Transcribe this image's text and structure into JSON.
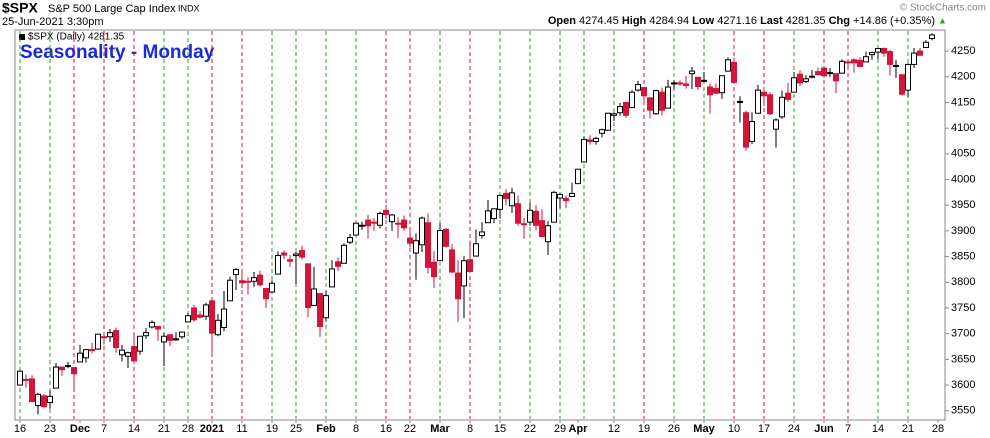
{
  "chart_data": {
    "type": "candlestick",
    "symbol": "$SPX",
    "name": "S&P 500 Large Cap Index",
    "exchange": "INDX",
    "datetime": "25-Jun-2021 3:30pm",
    "quote": {
      "open_label": "Open",
      "open": 4274.45,
      "high_label": "High",
      "high": 4284.94,
      "low_label": "Low",
      "low": 4271.16,
      "last_label": "Last",
      "last": 4281.35,
      "chg_label": "Chg",
      "chg": "+14.86",
      "chg_pct": "(+0.35%)",
      "arrow": "▲"
    },
    "credit": "© StockCharts.com",
    "legend": "$SPX (Daily) 4281.35",
    "title": "Seasonality - Monday",
    "up_color": "#ffffff",
    "down_color": "#d6133a",
    "marker_up_color": "#2e9e2e",
    "marker_down_color": "#d6133a",
    "ylim": [
      3532,
      4291
    ],
    "yticks": [
      3550,
      3600,
      3650,
      3700,
      3750,
      3800,
      3850,
      3900,
      3950,
      4000,
      4050,
      4100,
      4150,
      4200,
      4250
    ],
    "categories": [
      "16",
      null,
      null,
      null,
      null,
      "23",
      null,
      null,
      null,
      null,
      "Dec",
      null,
      null,
      null,
      "7",
      null,
      null,
      null,
      null,
      "14",
      null,
      null,
      null,
      null,
      "21",
      null,
      null,
      null,
      "28",
      null,
      null,
      null,
      "2021",
      null,
      null,
      null,
      null,
      "11",
      null,
      null,
      null,
      null,
      "19",
      null,
      null,
      null,
      "25",
      null,
      null,
      null,
      null,
      "Feb",
      null,
      null,
      null,
      null,
      "8",
      null,
      null,
      null,
      null,
      "16",
      null,
      null,
      null,
      "22",
      null,
      null,
      null,
      null,
      "Mar",
      null,
      null,
      null,
      null,
      "8",
      null,
      null,
      null,
      null,
      "15",
      null,
      null,
      null,
      null,
      "22",
      null,
      null,
      null,
      null,
      "29",
      null,
      null,
      "Apr",
      null,
      null,
      null,
      null,
      null,
      "12",
      null,
      null,
      null,
      null,
      "19",
      null,
      null,
      null,
      null,
      "26",
      null,
      null,
      null,
      null,
      "May",
      null,
      null,
      null,
      null,
      "10",
      null,
      null,
      null,
      null,
      "17",
      null,
      null,
      null,
      null,
      "24",
      null,
      null,
      null,
      null,
      "Jun",
      null,
      null,
      null,
      "7",
      null,
      null,
      null,
      null,
      "14",
      null,
      null,
      null,
      null,
      "21",
      null,
      null,
      null,
      null,
      "28"
    ],
    "marker_days": [
      0,
      5,
      9,
      14,
      19,
      24,
      28,
      32,
      37,
      42,
      46,
      51,
      56,
      61,
      65,
      70,
      75,
      80,
      85,
      90,
      94,
      99,
      104,
      109,
      114,
      119,
      124,
      129,
      134,
      138,
      143,
      148
    ],
    "ohlc": [
      [
        3600,
        3628,
        3600,
        3627
      ],
      [
        3611,
        3620,
        3595,
        3610
      ],
      [
        3612,
        3619,
        3567,
        3568
      ],
      [
        3560,
        3585,
        3543,
        3582
      ],
      [
        3579,
        3582,
        3556,
        3558
      ],
      [
        3566,
        3590,
        3554,
        3578
      ],
      [
        3594,
        3643,
        3594,
        3635
      ],
      [
        3635,
        3636,
        3618,
        3630
      ],
      [
        3638,
        3645,
        3633,
        3638
      ],
      [
        3634,
        3634,
        3594,
        3622
      ],
      [
        3645,
        3678,
        3645,
        3662
      ],
      [
        3653,
        3670,
        3644,
        3669
      ],
      [
        3669,
        3682,
        3662,
        3667
      ],
      [
        3670,
        3700,
        3669,
        3699
      ],
      [
        3694,
        3697,
        3679,
        3692
      ],
      [
        3694,
        3709,
        3684,
        3702
      ],
      [
        3706,
        3712,
        3663,
        3673
      ],
      [
        3659,
        3678,
        3646,
        3668
      ],
      [
        3656,
        3665,
        3633,
        3663
      ],
      [
        3675,
        3698,
        3645,
        3647
      ],
      [
        3666,
        3695,
        3659,
        3695
      ],
      [
        3696,
        3711,
        3690,
        3702
      ],
      [
        3713,
        3726,
        3710,
        3722
      ],
      [
        3714,
        3715,
        3686,
        3709
      ],
      [
        3684,
        3702,
        3637,
        3695
      ],
      [
        3698,
        3698,
        3676,
        3687
      ],
      [
        3688,
        3703,
        3686,
        3690
      ],
      [
        3694,
        3704,
        3690,
        3703
      ],
      [
        3723,
        3740,
        3723,
        3735
      ],
      [
        3750,
        3756,
        3723,
        3727
      ],
      [
        3736,
        3744,
        3730,
        3732
      ],
      [
        3734,
        3760,
        3727,
        3756
      ],
      [
        3764,
        3770,
        3663,
        3701
      ],
      [
        3698,
        3738,
        3695,
        3726
      ],
      [
        3712,
        3783,
        3705,
        3748
      ],
      [
        3764,
        3811,
        3764,
        3804
      ],
      [
        3815,
        3827,
        3785,
        3825
      ],
      [
        3803,
        3818,
        3789,
        3799
      ],
      [
        3802,
        3810,
        3776,
        3801
      ],
      [
        3802,
        3820,
        3791,
        3809
      ],
      [
        3814,
        3823,
        3792,
        3795
      ],
      [
        3788,
        3788,
        3750,
        3768
      ],
      [
        3781,
        3804,
        3780,
        3798
      ],
      [
        3816,
        3860,
        3816,
        3852
      ],
      [
        3857,
        3862,
        3845,
        3853
      ],
      [
        3844,
        3853,
        3830,
        3841
      ],
      [
        3852,
        3859,
        3797,
        3855
      ],
      [
        3862,
        3871,
        3844,
        3849
      ],
      [
        3836,
        3836,
        3732,
        3751
      ],
      [
        3755,
        3830,
        3755,
        3787
      ],
      [
        3778,
        3778,
        3694,
        3714
      ],
      [
        3731,
        3784,
        3725,
        3774
      ],
      [
        3791,
        3843,
        3791,
        3826
      ],
      [
        3840,
        3848,
        3822,
        3831
      ],
      [
        3837,
        3876,
        3837,
        3872
      ],
      [
        3878,
        3894,
        3874,
        3887
      ],
      [
        3892,
        3916,
        3892,
        3915
      ],
      [
        3910,
        3918,
        3902,
        3911
      ],
      [
        3921,
        3931,
        3885,
        3910
      ],
      [
        3917,
        3925,
        3900,
        3916
      ],
      [
        3911,
        3937,
        3905,
        3934
      ],
      [
        3940,
        3951,
        3923,
        3932
      ],
      [
        3918,
        3933,
        3900,
        3931
      ],
      [
        3915,
        3926,
        3886,
        3914
      ],
      [
        3921,
        3930,
        3900,
        3906
      ],
      [
        3886,
        3902,
        3868,
        3876
      ],
      [
        3857,
        3895,
        3805,
        3881
      ],
      [
        3873,
        3928,
        3859,
        3925
      ],
      [
        3916,
        3934,
        3817,
        3829
      ],
      [
        3839,
        3861,
        3789,
        3811
      ],
      [
        3842,
        3915,
        3842,
        3901
      ],
      [
        3903,
        3906,
        3868,
        3870
      ],
      [
        3863,
        3874,
        3818,
        3820
      ],
      [
        3818,
        3843,
        3723,
        3768
      ],
      [
        3793,
        3851,
        3730,
        3842
      ],
      [
        3844,
        3881,
        3819,
        3821
      ],
      [
        3851,
        3903,
        3851,
        3875
      ],
      [
        3891,
        3917,
        3885,
        3898
      ],
      [
        3916,
        3960,
        3916,
        3939
      ],
      [
        3924,
        3944,
        3915,
        3943
      ],
      [
        3942,
        3970,
        3924,
        3969
      ],
      [
        3973,
        3981,
        3950,
        3963
      ],
      [
        3949,
        3984,
        3935,
        3974
      ],
      [
        3953,
        3969,
        3910,
        3915
      ],
      [
        3914,
        3925,
        3885,
        3913
      ],
      [
        3917,
        3955,
        3910,
        3940
      ],
      [
        3938,
        3950,
        3901,
        3911
      ],
      [
        3920,
        3942,
        3888,
        3889
      ],
      [
        3879,
        3919,
        3853,
        3910
      ],
      [
        3917,
        3978,
        3917,
        3975
      ],
      [
        3964,
        3974,
        3944,
        3971
      ],
      [
        3963,
        3969,
        3944,
        3959
      ],
      [
        3967,
        3994,
        3966,
        3973
      ],
      [
        3992,
        4021,
        3992,
        4020
      ],
      [
        4034,
        4084,
        4034,
        4078
      ],
      [
        4077,
        4086,
        4068,
        4074
      ],
      [
        4074,
        4083,
        4068,
        4080
      ],
      [
        4090,
        4099,
        4082,
        4097
      ],
      [
        4096,
        4130,
        4096,
        4129
      ],
      [
        4125,
        4131,
        4114,
        4128
      ],
      [
        4130,
        4149,
        4124,
        4142
      ],
      [
        4150,
        4151,
        4120,
        4125
      ],
      [
        4140,
        4174,
        4140,
        4170
      ],
      [
        4174,
        4192,
        4171,
        4185
      ],
      [
        4179,
        4180,
        4150,
        4163
      ],
      [
        4159,
        4160,
        4119,
        4135
      ],
      [
        4128,
        4175,
        4126,
        4173
      ],
      [
        4170,
        4179,
        4124,
        4135
      ],
      [
        4139,
        4194,
        4139,
        4180
      ],
      [
        4186,
        4193,
        4176,
        4188
      ],
      [
        4188,
        4193,
        4182,
        4187
      ],
      [
        4186,
        4202,
        4177,
        4183
      ],
      [
        4206,
        4219,
        4176,
        4211
      ],
      [
        4199,
        4199,
        4174,
        4181
      ],
      [
        4192,
        4209,
        4188,
        4193
      ],
      [
        4180,
        4187,
        4128,
        4165
      ],
      [
        4177,
        4187,
        4166,
        4168
      ],
      [
        4169,
        4202,
        4157,
        4202
      ],
      [
        4211,
        4238,
        4210,
        4233
      ],
      [
        4228,
        4237,
        4188,
        4189
      ],
      [
        4150,
        4162,
        4111,
        4152
      ],
      [
        4130,
        4134,
        4056,
        4063
      ],
      [
        4074,
        4131,
        4069,
        4113
      ],
      [
        4129,
        4184,
        4129,
        4174
      ],
      [
        4170,
        4172,
        4143,
        4163
      ],
      [
        4165,
        4170,
        4125,
        4128
      ],
      [
        4098,
        4119,
        4062,
        4116
      ],
      [
        4122,
        4173,
        4118,
        4160
      ],
      [
        4168,
        4188,
        4151,
        4156
      ],
      [
        4170,
        4209,
        4170,
        4198
      ],
      [
        4205,
        4213,
        4182,
        4188
      ],
      [
        4191,
        4203,
        4188,
        4196
      ],
      [
        4201,
        4213,
        4197,
        4201
      ],
      [
        4210,
        4218,
        4203,
        4204
      ],
      [
        4217,
        4218,
        4198,
        4202
      ],
      [
        4207,
        4217,
        4199,
        4208
      ],
      [
        4206,
        4206,
        4168,
        4192
      ],
      [
        4207,
        4234,
        4207,
        4230
      ],
      [
        4229,
        4232,
        4215,
        4227
      ],
      [
        4233,
        4236,
        4208,
        4227
      ],
      [
        4232,
        4238,
        4219,
        4220
      ],
      [
        4229,
        4249,
        4229,
        4239
      ],
      [
        4243,
        4249,
        4233,
        4247
      ],
      [
        4248,
        4256,
        4234,
        4255
      ],
      [
        4255,
        4257,
        4239,
        4246
      ],
      [
        4249,
        4252,
        4203,
        4224
      ],
      [
        4220,
        4233,
        4198,
        4222
      ],
      [
        4204,
        4204,
        4164,
        4166
      ],
      [
        4174,
        4226,
        4161,
        4224
      ],
      [
        4224,
        4256,
        4217,
        4246
      ],
      [
        4250,
        4256,
        4240,
        4242
      ],
      [
        4257,
        4271,
        4257,
        4267
      ],
      [
        4274.45,
        4284.94,
        4271.16,
        4281.35
      ],
      null
    ]
  }
}
